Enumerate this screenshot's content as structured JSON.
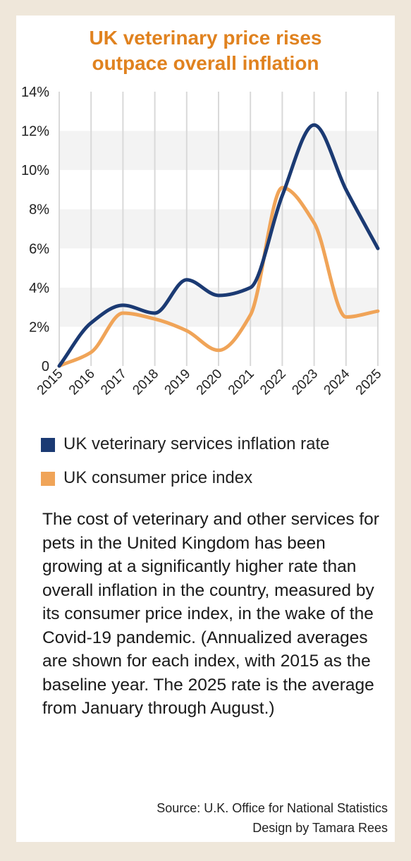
{
  "title_lines": [
    "UK veterinary price rises",
    "outpace overall inflation"
  ],
  "colors": {
    "page_background": "#efe7da",
    "card_background": "#ffffff",
    "title": "#e0821f",
    "vet_series": "#1b3a73",
    "cpi_series": "#f0a458",
    "band": "#f3f3f3",
    "gridline": "#d9d9d9"
  },
  "chart_data": {
    "type": "line",
    "title": "UK veterinary price rises outpace overall inflation",
    "x": [
      "2015",
      "2016",
      "2017",
      "2018",
      "2019",
      "2020",
      "2021",
      "2022",
      "2023",
      "2024",
      "2025"
    ],
    "series": [
      {
        "name": "UK veterinary services inflation rate",
        "color": "#1b3a73",
        "values": [
          0,
          2.2,
          3.1,
          2.7,
          4.4,
          3.6,
          4.0,
          8.7,
          12.3,
          9.0,
          6.0
        ]
      },
      {
        "name": "UK consumer price index",
        "color": "#f0a458",
        "values": [
          0,
          0.7,
          2.7,
          2.4,
          1.8,
          0.8,
          2.6,
          9.1,
          7.3,
          2.5,
          2.8
        ]
      }
    ],
    "ylim": [
      0,
      14
    ],
    "yticks": [
      {
        "value": 0,
        "label": "0"
      },
      {
        "value": 2,
        "label": "2%"
      },
      {
        "value": 4,
        "label": "4%"
      },
      {
        "value": 6,
        "label": "6%"
      },
      {
        "value": 8,
        "label": "8%"
      },
      {
        "value": 10,
        "label": "10%"
      },
      {
        "value": 12,
        "label": "12%"
      },
      {
        "value": 14,
        "label": "14%"
      }
    ],
    "grid": true,
    "legend_position": "bottom"
  },
  "legend": [
    {
      "label": "UK veterinary services inflation rate"
    },
    {
      "label": "UK consumer price index"
    }
  ],
  "description": "The cost of veterinary and other services for pets in the United Kingdom has been growing at a significantly higher rate than overall inflation in the country, measured by its consumer price index, in the wake of the Covid-19 pandemic. (Annualized averages are shown for each index, with 2015 as the baseline year. The 2025 rate is the average from January through August.)",
  "credits": {
    "source": "Source: U.K. Office for National Statistics",
    "design": "Design by Tamara Rees"
  }
}
